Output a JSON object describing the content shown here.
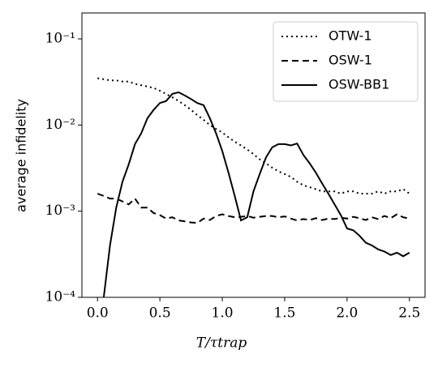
{
  "chart_data": {
    "type": "line",
    "x_label": "T/τtrap",
    "y_label": "average infidelity",
    "log_y": true,
    "legend": "upper right",
    "x": [
      0,
      0.05,
      0.1,
      0.15,
      0.2,
      0.25,
      0.3,
      0.35,
      0.4,
      0.45,
      0.5,
      0.55,
      0.6,
      0.65,
      0.7,
      0.75,
      0.8,
      0.85,
      0.9,
      0.95,
      1.0,
      1.05,
      1.1,
      1.15,
      1.2,
      1.25,
      1.3,
      1.35,
      1.4,
      1.45,
      1.5,
      1.55,
      1.6,
      1.65,
      1.7,
      1.75,
      1.8,
      1.85,
      1.9,
      1.95,
      2.0,
      2.05,
      2.1,
      2.15,
      2.2,
      2.25,
      2.3,
      2.35,
      2.4,
      2.45,
      2.5
    ],
    "series": [
      {
        "name": "OTW-1",
        "color": "#000000",
        "dash": "dotted",
        "values": [
          0.035,
          0.034,
          0.033,
          0.033,
          0.032,
          0.032,
          0.03,
          0.029,
          0.028,
          0.027,
          0.025,
          0.023,
          0.021,
          0.019,
          0.017,
          0.015,
          0.013,
          0.0115,
          0.01,
          0.009,
          0.0082,
          0.0072,
          0.0064,
          0.0058,
          0.0052,
          0.0046,
          0.004,
          0.0036,
          0.0032,
          0.0029,
          0.0027,
          0.0025,
          0.0022,
          0.002,
          0.0019,
          0.0018,
          0.0017,
          0.0017,
          0.0017,
          0.0016,
          0.0017,
          0.0017,
          0.0016,
          0.0016,
          0.0016,
          0.0017,
          0.0016,
          0.0017,
          0.0017,
          0.0018,
          0.0016
        ]
      },
      {
        "name": "OSW-1",
        "color": "#000000",
        "dash": "dashed",
        "values": [
          0.0016,
          0.0015,
          0.0014,
          0.0014,
          0.0013,
          0.0012,
          0.0014,
          0.0011,
          0.0011,
          0.00095,
          0.0009,
          0.00082,
          0.00085,
          0.00078,
          0.00076,
          0.00074,
          0.00073,
          0.00082,
          0.00079,
          0.00088,
          0.00092,
          0.00088,
          0.00085,
          0.00086,
          0.00088,
          0.00084,
          0.00086,
          0.00088,
          0.00088,
          0.00085,
          0.00087,
          0.00082,
          0.00078,
          0.00081,
          0.00079,
          0.00083,
          0.00079,
          0.00082,
          0.00081,
          0.00084,
          0.00082,
          0.00086,
          0.00083,
          0.00079,
          0.00085,
          0.00081,
          0.00088,
          0.00083,
          0.00092,
          0.00085,
          0.00082
        ]
      },
      {
        "name": "OSW-BB1",
        "color": "#000000",
        "dash": "solid",
        "values": [
          null,
          0.0001,
          0.0004,
          0.0011,
          0.0022,
          0.0035,
          0.006,
          0.008,
          0.012,
          0.015,
          0.018,
          0.019,
          0.023,
          0.024,
          0.022,
          0.02,
          0.018,
          0.017,
          0.012,
          0.008,
          0.005,
          0.0028,
          0.0015,
          0.00078,
          0.00085,
          0.0017,
          0.0027,
          0.0042,
          0.0055,
          0.006,
          0.006,
          0.0058,
          0.0061,
          0.0045,
          0.0036,
          0.0028,
          0.0021,
          0.0016,
          0.0012,
          0.0009,
          0.00063,
          0.0006,
          0.00052,
          0.00043,
          0.0004,
          0.00036,
          0.00034,
          0.00031,
          0.00033,
          0.0003,
          0.00033
        ]
      }
    ],
    "xlim": [
      -0.125,
      2.625
    ],
    "ylim": [
      0.0001,
      0.2
    ],
    "xticks": [
      {
        "value": 0,
        "label": "0.0"
      },
      0.5,
      {
        "value": 1,
        "label": "1.0"
      },
      1.5,
      {
        "value": 2,
        "label": "2.0"
      },
      2.5
    ],
    "yticks": [
      {
        "value": 0.0001,
        "label": "10⁻⁴"
      },
      {
        "value": 0.001,
        "label": "10⁻³"
      },
      {
        "value": 0.01,
        "label": "10⁻²"
      },
      {
        "value": 0.1,
        "label": "10⁻¹"
      }
    ]
  }
}
